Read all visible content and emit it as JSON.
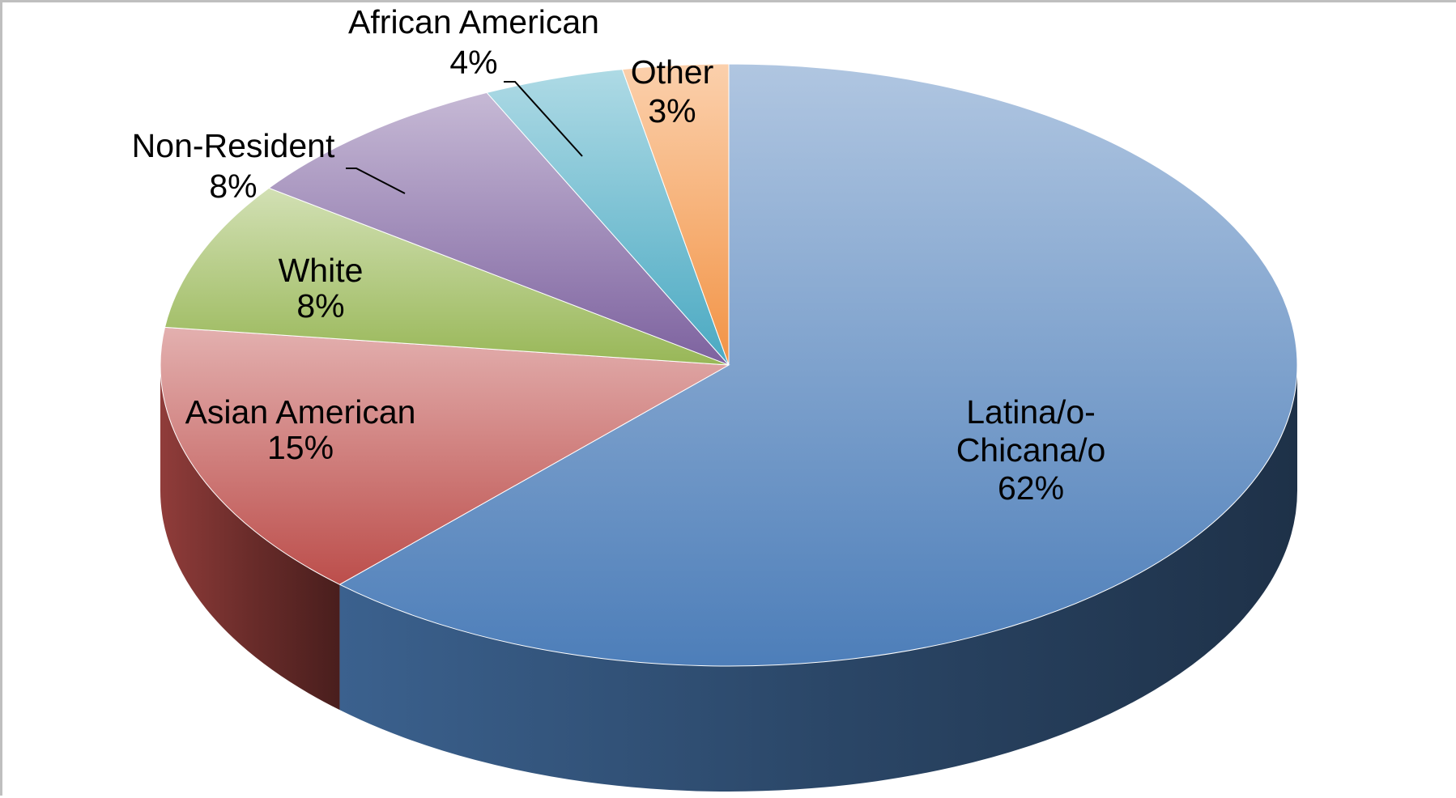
{
  "chart_data": {
    "type": "pie",
    "style": "3d",
    "title": "",
    "categories": [
      "Latina/o-Chicana/o",
      "Asian American",
      "White",
      "Non-Resident",
      "African American",
      "Other"
    ],
    "values": [
      62,
      15,
      8,
      8,
      4,
      3
    ],
    "data_labels": [
      {
        "name_lines": [
          "Latina/o-",
          "Chicana/o"
        ],
        "value_text": "62%"
      },
      {
        "name_lines": [
          "Asian American"
        ],
        "value_text": "15%"
      },
      {
        "name_lines": [
          "White"
        ],
        "value_text": "8%"
      },
      {
        "name_lines": [
          "Non-Resident"
        ],
        "value_text": "8%"
      },
      {
        "name_lines": [
          "African American"
        ],
        "value_text": "4%"
      },
      {
        "name_lines": [
          "Other"
        ],
        "value_text": "3%"
      }
    ],
    "colors": [
      "#4f81bd",
      "#c0504d",
      "#9bbb59",
      "#8064a2",
      "#4bacc6",
      "#f79646"
    ],
    "legend": "none"
  }
}
